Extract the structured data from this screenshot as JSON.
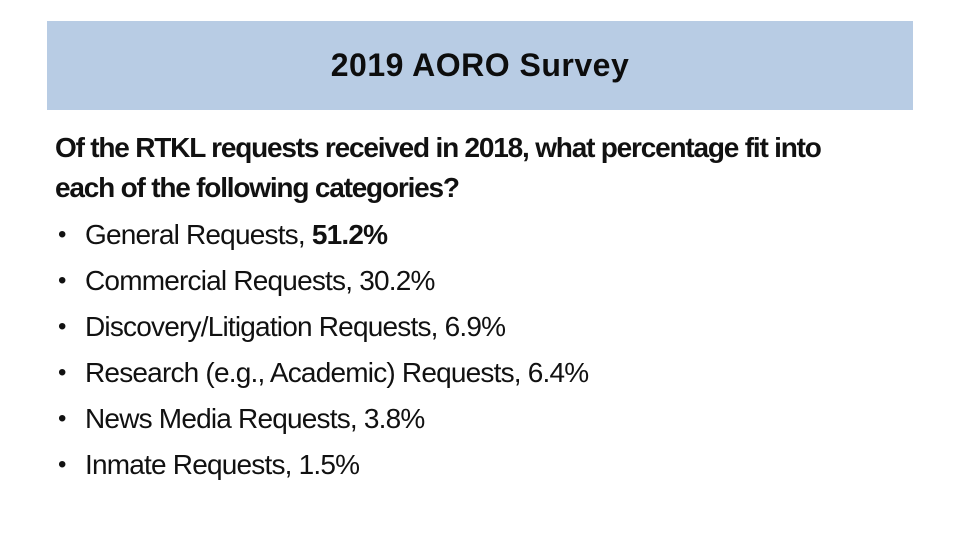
{
  "slide": {
    "title": "2019 AORO Survey",
    "intro_lines": [
      "Of the RTKL requests received in 2018, what percentage fit into",
      "each of the following categories?"
    ],
    "bullet_glyph": "•",
    "bullets": [
      {
        "label": "General Requests, ",
        "value": "51.2%",
        "value_bold": true
      },
      {
        "label": "Commercial Requests, ",
        "value": "30.2%",
        "value_bold": false
      },
      {
        "label": "Discovery/Litigation Requests, ",
        "value": "6.9%",
        "value_bold": false
      },
      {
        "label": "Research (e.g., Academic) Requests, ",
        "value": "6.4%",
        "value_bold": false
      },
      {
        "label": "News Media Requests, ",
        "value": "3.8%",
        "value_bold": false
      },
      {
        "label": "Inmate Requests, ",
        "value": "1.5%",
        "value_bold": false
      }
    ],
    "colors": {
      "banner_bg": "#b8cce4",
      "text": "#111111",
      "background": "#ffffff"
    }
  }
}
